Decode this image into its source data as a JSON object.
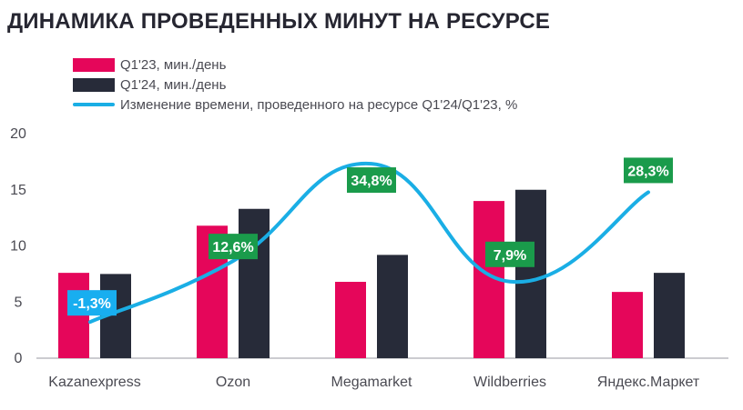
{
  "title": "ДИНАМИКА ПРОВЕДЕННЫХ МИНУТ НА РЕСУРСЕ",
  "colors": {
    "q1_23": "#e5065a",
    "q1_24": "#272b39",
    "line": "#1aaee5",
    "badge_positive": "#1a9b4b",
    "badge_negative": "#18aef0",
    "axis": "#9a9aa2"
  },
  "legend": [
    {
      "label": "Q1'23, мин./день",
      "kind": "bar",
      "color": "#e5065a"
    },
    {
      "label": "Q1'24, мин./день",
      "kind": "bar",
      "color": "#272b39"
    },
    {
      "label": "Изменение времени, проведенного на ресурсе Q1'24/Q1'23, %",
      "kind": "line",
      "color": "#1aaee5"
    }
  ],
  "chart_data": {
    "type": "bar",
    "categories": [
      "Kazanexpress",
      "Ozon",
      "Megamarket",
      "Wildberries",
      "Яндекс.Маркет"
    ],
    "series": [
      {
        "name": "Q1'23, мин./день",
        "values": [
          7.6,
          11.8,
          6.8,
          14.0,
          5.9
        ]
      },
      {
        "name": "Q1'24, мин./день",
        "values": [
          7.5,
          13.3,
          9.2,
          15.0,
          7.6
        ]
      }
    ],
    "line_series": {
      "name": "Изменение времени, проведенного на ресурсе Q1'24/Q1'23, %",
      "values": [
        -1.3,
        12.6,
        34.8,
        7.9,
        28.3
      ],
      "labels": [
        "-1,3%",
        "12,6%",
        "34,8%",
        "7,9%",
        "28,3%"
      ]
    },
    "yticks": [
      "0",
      "5",
      "10",
      "15",
      "20"
    ],
    "ylim": [
      0,
      20
    ],
    "grid": false
  }
}
